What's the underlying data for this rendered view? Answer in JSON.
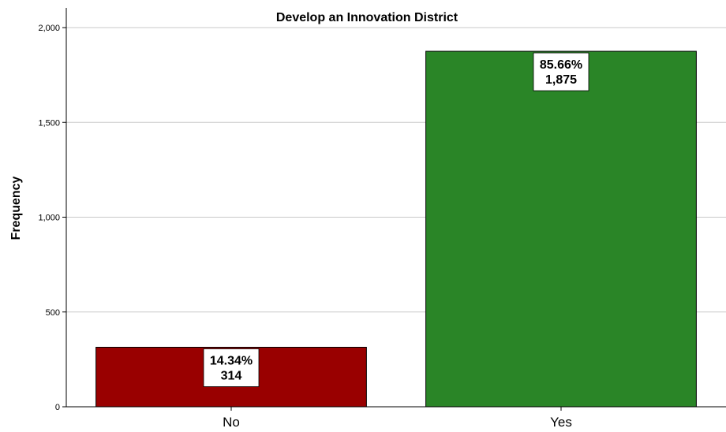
{
  "chart_data": {
    "type": "bar",
    "title": "Develop an Innovation District",
    "xlabel": "",
    "ylabel": "Frequency",
    "categories": [
      "No",
      "Yes"
    ],
    "values": [
      314,
      1875
    ],
    "percent_labels": [
      "14.34%",
      "85.66%"
    ],
    "count_labels": [
      "314",
      "1,875"
    ],
    "colors": [
      "#990000",
      "#2a8527"
    ],
    "ylim": [
      0,
      2000
    ],
    "yticks": [
      0,
      500,
      1000,
      1500,
      2000
    ],
    "ytick_labels": [
      "0",
      "500",
      "1,000",
      "1,500",
      "2,000"
    ],
    "grid": true,
    "legend": "none"
  }
}
